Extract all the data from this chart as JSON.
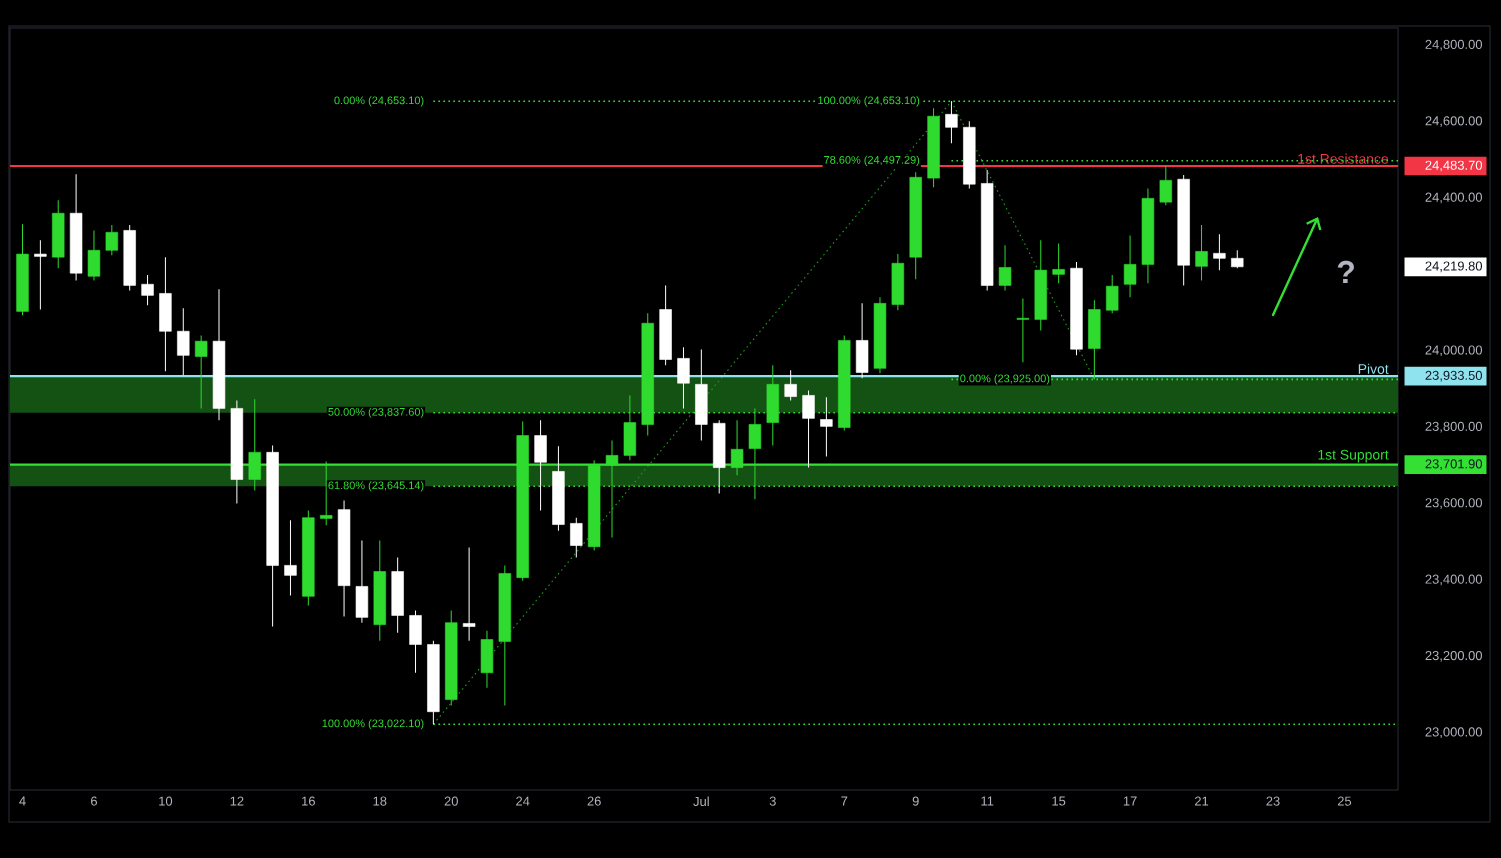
{
  "chart_data": {
    "type": "candlestick",
    "categories": [
      "4",
      null,
      null,
      null,
      "6",
      null,
      null,
      null,
      "10",
      null,
      null,
      null,
      "12",
      null,
      null,
      null,
      "16",
      null,
      null,
      null,
      "18",
      null,
      null,
      null,
      "20",
      null,
      null,
      null,
      "24",
      null,
      null,
      null,
      "26",
      null,
      null,
      null,
      null,
      null,
      "Jul",
      null,
      null,
      null,
      "3",
      null,
      null,
      null,
      "7",
      null,
      null,
      null,
      "9",
      null,
      null,
      null,
      "11",
      null,
      null,
      null,
      "15",
      null,
      null,
      null,
      "17",
      null,
      null,
      null,
      "21",
      null,
      null,
      null,
      "23",
      null,
      null,
      null,
      "25",
      null
    ],
    "ohlc": [
      [
        24103,
        24331,
        24093,
        24253
      ],
      [
        24253,
        24289,
        24108,
        24247
      ],
      [
        24245,
        24394,
        24216,
        24360
      ],
      [
        24360,
        24462,
        24184,
        24203
      ],
      [
        24195,
        24315,
        24184,
        24263
      ],
      [
        24263,
        24329,
        24250,
        24310
      ],
      [
        24315,
        24329,
        24158,
        24171
      ],
      [
        24174,
        24198,
        24119,
        24145
      ],
      [
        24150,
        24245,
        23946,
        24051
      ],
      [
        24051,
        24111,
        23936,
        23988
      ],
      [
        23985,
        24040,
        23849,
        24025
      ],
      [
        24025,
        24161,
        23818,
        23849
      ],
      [
        23849,
        23870,
        23600,
        23663
      ],
      [
        23663,
        23873,
        23634,
        23734
      ],
      [
        23734,
        23752,
        23278,
        23438
      ],
      [
        23438,
        23556,
        23359,
        23412
      ],
      [
        23357,
        23582,
        23333,
        23563
      ],
      [
        23561,
        23710,
        23543,
        23569
      ],
      [
        23584,
        23608,
        23304,
        23385
      ],
      [
        23383,
        23503,
        23288,
        23302
      ],
      [
        23283,
        23503,
        23241,
        23422
      ],
      [
        23422,
        23459,
        23262,
        23307
      ],
      [
        23307,
        23320,
        23157,
        23231
      ],
      [
        23231,
        23241,
        23022.1,
        23055
      ],
      [
        23087,
        23320,
        23071,
        23288
      ],
      [
        23286,
        23485,
        23241,
        23278
      ],
      [
        23157,
        23267,
        23118,
        23244
      ],
      [
        23239,
        23438,
        23071,
        23417
      ],
      [
        23406,
        23815,
        23398,
        23778
      ],
      [
        23778,
        23818,
        23582,
        23708
      ],
      [
        23684,
        23750,
        23529,
        23545
      ],
      [
        23548,
        23563,
        23459,
        23490
      ],
      [
        23487,
        23713,
        23477,
        23700
      ],
      [
        23700,
        23765,
        23511,
        23726
      ],
      [
        23726,
        23883,
        23713,
        23812
      ],
      [
        23807,
        24098,
        23778,
        24072
      ],
      [
        24108,
        24171,
        23962,
        23977
      ],
      [
        23980,
        24009,
        23849,
        23915
      ],
      [
        23912,
        24003,
        23765,
        23807
      ],
      [
        23810,
        23818,
        23626,
        23694
      ],
      [
        23694,
        23818,
        23674,
        23742
      ],
      [
        23744,
        23849,
        23611,
        23807
      ],
      [
        23812,
        23962,
        23752,
        23912
      ],
      [
        23912,
        23949,
        23870,
        23880
      ],
      [
        23883,
        23896,
        23694,
        23823
      ],
      [
        23820,
        23878,
        23723,
        23802
      ],
      [
        23799,
        24040,
        23791,
        24027
      ],
      [
        24027,
        24124,
        23928,
        23943
      ],
      [
        23954,
        24140,
        23941,
        24124
      ],
      [
        24121,
        24253,
        24106,
        24229
      ],
      [
        24245,
        24467,
        24187,
        24454
      ],
      [
        24452,
        24635,
        24428,
        24614
      ],
      [
        24619,
        24653.1,
        24543,
        24585
      ],
      [
        24585,
        24601,
        24425,
        24436
      ],
      [
        24438,
        24473,
        24158,
        24171
      ],
      [
        24171,
        24276,
        24158,
        24218
      ],
      [
        24082,
        24137,
        23970,
        24085
      ],
      [
        24082,
        24289,
        24053,
        24211
      ],
      [
        24200,
        24281,
        24177,
        24213
      ],
      [
        24216,
        24232,
        23988,
        24004
      ],
      [
        24006,
        24132,
        23925,
        24108
      ],
      [
        24106,
        24198,
        24098,
        24169
      ],
      [
        24174,
        24302,
        24140,
        24226
      ],
      [
        24226,
        24425,
        24177,
        24399
      ],
      [
        24389,
        24483.7,
        24381,
        24446
      ],
      [
        24449,
        24460,
        24171,
        24224
      ],
      [
        24221,
        24329,
        24184,
        24260
      ],
      [
        24255,
        24305,
        24211,
        24242
      ],
      [
        24242,
        24263,
        24216,
        24219.8
      ],
      null,
      null,
      null,
      null,
      null,
      null,
      null
    ],
    "colors": [
      "#2fdb2f",
      "#ffffff",
      "#2fdb2f",
      "#ffffff",
      "#2fdb2f",
      "#2fdb2f",
      "#ffffff",
      "#ffffff",
      "#ffffff",
      "#ffffff",
      "#2fdb2f",
      "#ffffff",
      "#ffffff",
      "#2fdb2f",
      "#ffffff",
      "#ffffff",
      "#2fdb2f",
      "#2fdb2f",
      "#ffffff",
      "#ffffff",
      "#2fdb2f",
      "#ffffff",
      "#ffffff",
      "#ffffff",
      "#2fdb2f",
      "#ffffff",
      "#2fdb2f",
      "#2fdb2f",
      "#2fdb2f",
      "#ffffff",
      "#ffffff",
      "#ffffff",
      "#2fdb2f",
      "#2fdb2f",
      "#2fdb2f",
      "#2fdb2f",
      "#ffffff",
      "#ffffff",
      "#ffffff",
      "#ffffff",
      "#2fdb2f",
      "#2fdb2f",
      "#2fdb2f",
      "#ffffff",
      "#ffffff",
      "#ffffff",
      "#2fdb2f",
      "#ffffff",
      "#2fdb2f",
      "#2fdb2f",
      "#2fdb2f",
      "#2fdb2f",
      "#ffffff",
      "#ffffff",
      "#ffffff",
      "#2fdb2f",
      "#2fdb2f",
      "#2fdb2f",
      "#2fdb2f",
      "#ffffff",
      "#2fdb2f",
      "#2fdb2f",
      "#2fdb2f",
      "#2fdb2f",
      "#2fdb2f",
      "#ffffff",
      "#2fdb2f",
      "#ffffff",
      "#ffffff",
      null,
      null,
      null,
      null,
      null,
      null,
      null
    ],
    "series": [
      {
        "type": "line",
        "color": "#1f9a1f",
        "line_style": "dotted",
        "values": [
          null,
          null,
          null,
          null,
          null,
          null,
          null,
          null,
          null,
          null,
          null,
          null,
          null,
          null,
          null,
          null,
          null,
          null,
          null,
          null,
          null,
          null,
          null,
          23022.1,
          null,
          null,
          null,
          null,
          null,
          null,
          null,
          null,
          null,
          null,
          null,
          null,
          null,
          null,
          null,
          null,
          null,
          null,
          null,
          null,
          null,
          null,
          null,
          null,
          null,
          null,
          null,
          null,
          24653.1,
          null,
          null,
          null,
          null,
          null,
          null,
          null,
          null,
          null,
          null,
          null,
          null,
          null,
          null,
          null,
          null,
          null,
          null,
          null,
          null,
          null,
          null,
          null
        ]
      },
      {
        "type": "line",
        "color": "#1f9a1f",
        "line_style": "dotted",
        "values": [
          null,
          null,
          null,
          null,
          null,
          null,
          null,
          null,
          null,
          null,
          null,
          null,
          null,
          null,
          null,
          null,
          null,
          null,
          null,
          null,
          null,
          null,
          null,
          null,
          null,
          null,
          null,
          null,
          null,
          null,
          null,
          null,
          null,
          null,
          null,
          null,
          null,
          null,
          null,
          null,
          null,
          null,
          null,
          null,
          null,
          null,
          null,
          null,
          null,
          null,
          null,
          null,
          24653.1,
          null,
          null,
          null,
          null,
          null,
          null,
          null,
          23925.0,
          null,
          null,
          null,
          null,
          null,
          null,
          null,
          null,
          null,
          null,
          null,
          null,
          null,
          null,
          null
        ]
      }
    ],
    "ylim": [
      22850,
      24845
    ],
    "yticks": [
      {
        "value": 23000,
        "label": "23,000.00"
      },
      {
        "value": 23200,
        "label": "23,200.00"
      },
      {
        "value": 23400,
        "label": "23,400.00"
      },
      {
        "value": 23600,
        "label": "23,600.00"
      },
      {
        "value": 23701.9,
        "label": "23,701.90"
      },
      {
        "value": 23800,
        "label": "23,800.00"
      },
      {
        "value": 23933.5,
        "label": "23,933.50"
      },
      {
        "value": 24000,
        "label": "24,000.00"
      },
      {
        "value": 24219.8,
        "label": "24,219.80"
      },
      {
        "value": 24400,
        "label": "24,400.00"
      },
      {
        "value": 24483.7,
        "label": "24,483.70"
      },
      {
        "value": 24600,
        "label": "24,600.00"
      },
      {
        "value": 24800,
        "label": "24,800.00"
      }
    ],
    "bands": [
      {
        "axis": "y",
        "from": 23837.6,
        "to": 23933.5,
        "color": "#145214"
      },
      {
        "axis": "y",
        "from": 23645.14,
        "to": 23701.9,
        "color": "#145214"
      }
    ],
    "ref_lines": [
      {
        "axis": "y",
        "value": 24483.7,
        "label": "1st Resistance",
        "color": "#f23645",
        "line_style": "solid"
      },
      {
        "axis": "y",
        "value": 23933.5,
        "label": "Pivot",
        "color": "#8ee3ef",
        "line_style": "solid"
      },
      {
        "axis": "y",
        "value": 23701.9,
        "label": "1st Support",
        "color": "#33e033",
        "line_style": "solid"
      },
      {
        "axis": "y",
        "value": 24653.1,
        "label": "0.00% (24,653.10)",
        "color": "#33e033",
        "line_style": "dotted"
      },
      {
        "axis": "y",
        "value": 23837.6,
        "label": "50.00% (23,837.60)",
        "color": "#33e033",
        "line_style": "dotted"
      },
      {
        "axis": "y",
        "value": 23645.14,
        "label": "61.80% (23,645.14)",
        "color": "#33e033",
        "line_style": "dotted"
      },
      {
        "axis": "y",
        "value": 23022.1,
        "label": "100.00% (23,022.10)",
        "color": "#33e033",
        "line_style": "dotted"
      },
      {
        "axis": "y",
        "value": 24497.29,
        "label": "78.60% (24,497.29)",
        "color": "#33e033",
        "line_style": "dotted"
      },
      {
        "axis": "y",
        "value": 23925.0,
        "label": "0.00% (23,925.00)",
        "color": "#33e033",
        "line_style": "dotted"
      }
    ],
    "annotations": [
      {
        "text": "100.00% (24,653.10)",
        "y": 24653.1
      },
      "?"
    ]
  }
}
